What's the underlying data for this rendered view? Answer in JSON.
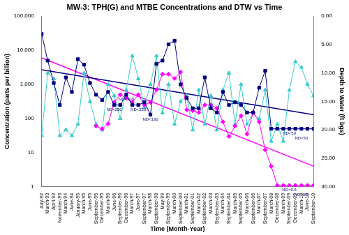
{
  "chart_data": {
    "type": "line",
    "title": "MW-3: TPH(G) and MTBE Concentrations and DTW vs Time",
    "x_label": "Time (Month-Year)",
    "y_label": "Concentration (parts per billion)",
    "y2_label": "Depth to Water (ft bgs)",
    "log": "y",
    "grid": false,
    "categories": [
      "July-92",
      "March-93",
      "April-93",
      "November-93",
      "March-94",
      "June-94",
      "January-95",
      "March-95",
      "June-95",
      "September-95",
      "December-95",
      "March-96",
      "June-96",
      "September-96",
      "December-96",
      "March-97",
      "June-97",
      "September-97",
      "March-98",
      "September-98",
      "May-99",
      "September-99",
      "March-00",
      "September-00",
      "March-01",
      "September-01",
      "March-02",
      "September-02",
      "March-03",
      "September-03",
      "March-04",
      "September-04",
      "March-05",
      "September-05",
      "March-06",
      "September-06",
      "March-07",
      "September-07",
      "March-08",
      "December-08",
      "March-09",
      "September-09",
      "December-09",
      "March-10",
      "June-10",
      "September-10"
    ],
    "ylim": [
      1,
      100000
    ],
    "yticks": [
      1,
      10,
      100,
      {
        "value": 1000,
        "label": "1,000"
      },
      {
        "value": 10000,
        "label": "10,000"
      },
      {
        "value": 100000,
        "label": "100,000"
      }
    ],
    "y2lim": [
      30,
      0
    ],
    "y2ticks": [
      {
        "value": 0,
        "label": "0.00"
      },
      {
        "value": 5,
        "label": "5.00"
      },
      {
        "value": 10,
        "label": "10.00"
      },
      {
        "value": 15,
        "label": "15.00"
      },
      {
        "value": 20,
        "label": "20.00"
      },
      {
        "value": 25,
        "label": "25.00"
      },
      {
        "value": 30,
        "label": "30.00"
      }
    ],
    "series": [
      {
        "name": "TPH(G)",
        "color": "#000080",
        "marker": "square",
        "line_style": "solid",
        "axis": "y",
        "values": [
          30000,
          5000,
          1100,
          250,
          1600,
          600,
          5500,
          3800,
          1100,
          500,
          350,
          600,
          250,
          250,
          500,
          250,
          250,
          300,
          130,
          4000,
          5000,
          15000,
          19000,
          1000,
          400,
          200,
          200,
          1600,
          200,
          150,
          600,
          250,
          300,
          250,
          150,
          150,
          800,
          2500,
          50,
          50,
          50,
          50,
          50,
          50,
          50,
          50
        ]
      },
      {
        "name": "MTBE",
        "color": "#ff00ff",
        "marker": "diamond",
        "line_style": "solid",
        "axis": "y",
        "values": [
          null,
          null,
          null,
          null,
          null,
          null,
          null,
          null,
          null,
          60,
          50,
          70,
          300,
          500,
          400,
          300,
          500,
          250,
          300,
          700,
          2000,
          2000,
          1500,
          2300,
          180,
          170,
          150,
          250,
          250,
          200,
          80,
          30,
          60,
          120,
          35,
          150,
          80,
          12,
          4,
          1.1,
          1.1,
          1.1,
          1.1,
          1.1,
          1.1,
          1.1
        ]
      },
      {
        "name": "DTW",
        "color": "#33cccc",
        "marker": "triangle",
        "line_style": "solid",
        "axis": "y2",
        "values": [
          21,
          10,
          11,
          21,
          20,
          21,
          19,
          10,
          15,
          19,
          20,
          12,
          14,
          18,
          13,
          7,
          11,
          16,
          12,
          7,
          17,
          12,
          19,
          15,
          14,
          20,
          13,
          19,
          14,
          20,
          13,
          10,
          19,
          12,
          19,
          17,
          18,
          13,
          22,
          19,
          22,
          13,
          8,
          9,
          12,
          14
        ]
      },
      {
        "color": "#000080",
        "marker": "none",
        "line_style": "solid",
        "axis": "y",
        "values": [
          2700,
          null,
          null,
          null,
          null,
          null,
          null,
          null,
          null,
          null,
          null,
          null,
          null,
          null,
          null,
          null,
          null,
          null,
          null,
          null,
          null,
          null,
          null,
          null,
          null,
          null,
          null,
          null,
          null,
          null,
          null,
          null,
          null,
          null,
          null,
          null,
          null,
          null,
          null,
          null,
          null,
          null,
          null,
          null,
          null,
          130
        ]
      },
      {
        "color": "#ff00ff",
        "marker": "none",
        "line_style": "solid",
        "axis": "y",
        "values": [
          6000,
          null,
          null,
          null,
          null,
          null,
          null,
          null,
          null,
          null,
          null,
          null,
          null,
          null,
          null,
          null,
          null,
          null,
          null,
          null,
          null,
          null,
          null,
          null,
          null,
          null,
          null,
          null,
          null,
          null,
          null,
          null,
          null,
          null,
          null,
          null,
          null,
          null,
          null,
          null,
          null,
          null,
          null,
          null,
          null,
          4
        ]
      }
    ],
    "annotations": [
      {
        "text": "ND<250",
        "x": "June-96",
        "y": 250
      },
      {
        "text": "ND<500",
        "x": "December-96",
        "y": 500
      },
      {
        "text": "ND<250",
        "x": "June-97",
        "y": 250
      },
      {
        "text": "ND<130",
        "x": "March-98",
        "y": 130
      },
      {
        "text": "ND<50",
        "x": "September-09",
        "y": 50
      },
      {
        "text": "ND<50",
        "x": "March-10",
        "y": 50
      },
      {
        "text": "ND<0.5",
        "x": "September-09",
        "y": 1.1
      },
      {
        "text": "ND<0.5",
        "x": "March-10",
        "y": 1.1
      }
    ]
  }
}
